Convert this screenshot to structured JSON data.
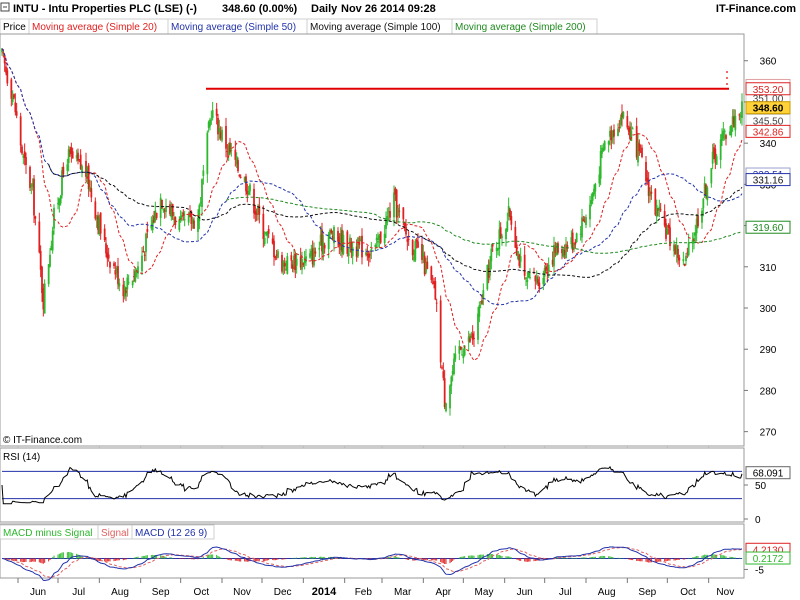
{
  "header": {
    "symbol": "INTU - Intu Properties PLC (LSE) (-)",
    "last": "348.60 (0.00%)",
    "period": "Daily",
    "date": "Nov 26 2014 09:28",
    "site": "IT-Finance.com"
  },
  "legend": {
    "price": "Price",
    "ma20": "Moving average (Simple 20)",
    "ma50": "Moving average (Simple 50)",
    "ma100": "Moving average (Simple 100)",
    "ma200": "Moving average (Simple 200)"
  },
  "watermark": "© IT-Finance.com",
  "colors": {
    "up": "#2db82d",
    "down": "#e02020",
    "ma20": "#e02020",
    "ma50": "#2233aa",
    "ma100": "#111111",
    "ma200": "#1f8a1f",
    "resistance": "#e00000",
    "rsi_line": "#000000",
    "rsi_bands": "#2233aa",
    "macd": "#2233aa",
    "signal": "#e06060",
    "histogram": "#2db82d"
  },
  "price_panel": {
    "yticks": [
      "360",
      "350",
      "340",
      "330",
      "320",
      "310",
      "300",
      "290",
      "280",
      "270"
    ],
    "ytick_values": [
      360,
      350,
      340,
      330,
      320,
      310,
      300,
      290,
      280,
      270
    ],
    "ylim": [
      267,
      366
    ],
    "labels": {
      "hidden_top": "354.00",
      "resistance": "353.20",
      "hidden_mid": "351.00",
      "hidden_low": "345.50",
      "last": "348.60",
      "ma20": "342.86",
      "ma50_hidden": "332.51",
      "ma50": "331.16",
      "ma200": "319.60"
    }
  },
  "rsi_panel": {
    "title": "RSI (14)",
    "yticks": [
      "50",
      "0"
    ],
    "ytick_values": [
      50,
      0
    ],
    "ylim": [
      0,
      100
    ],
    "bands": [
      70,
      30
    ],
    "last_label": "68.091"
  },
  "macd_panel": {
    "legend": {
      "hist": "MACD minus Signal",
      "signal": "Signal",
      "macd": "MACD (12 26 9)"
    },
    "yticks": [
      "-5"
    ],
    "ytick_values": [
      -5
    ],
    "ylim": [
      -8,
      8
    ],
    "signal_label": "4.2130",
    "hist_label": "0.2172"
  },
  "x_axis": {
    "labels": [
      "Jun",
      "Jul",
      "Aug",
      "Sep",
      "Oct",
      "Nov",
      "Dec",
      "2014",
      "Feb",
      "Mar",
      "Apr",
      "May",
      "Jun",
      "Jul",
      "Aug",
      "Sep",
      "Oct",
      "Nov"
    ]
  },
  "chart_data": {
    "type": "candlestick",
    "title": "INTU - Intu Properties PLC (LSE) (-)",
    "x_range": [
      "2013-05-20",
      "2014-11-26"
    ],
    "x_ticks": [
      "Jun",
      "Jul",
      "Aug",
      "Sep",
      "Oct",
      "Nov",
      "Dec",
      "2014",
      "Feb",
      "Mar",
      "Apr",
      "May",
      "Jun",
      "Jul",
      "Aug",
      "Sep",
      "Oct",
      "Nov"
    ],
    "ylim": [
      267,
      366
    ],
    "price_path": {
      "x": [
        "2013-05-20",
        "2013-05-28",
        "2013-06-05",
        "2013-06-12",
        "2013-06-20",
        "2013-06-28",
        "2013-07-08",
        "2013-07-22",
        "2013-08-05",
        "2013-08-19",
        "2013-08-30",
        "2013-09-06",
        "2013-09-16",
        "2013-10-01",
        "2013-10-14",
        "2013-10-24",
        "2013-11-01",
        "2013-11-08",
        "2013-11-20",
        "2013-12-02",
        "2013-12-16",
        "2014-01-06",
        "2014-01-20",
        "2014-02-05",
        "2014-02-24",
        "2014-03-10",
        "2014-03-20",
        "2014-03-31",
        "2014-04-10",
        "2014-04-17",
        "2014-04-28",
        "2014-05-09",
        "2014-05-23",
        "2014-06-05",
        "2014-06-16",
        "2014-06-27",
        "2014-07-09",
        "2014-07-22",
        "2014-08-04",
        "2014-08-15",
        "2014-08-28",
        "2014-09-08",
        "2014-09-22",
        "2014-10-03",
        "2014-10-14",
        "2014-10-24",
        "2014-11-04",
        "2014-11-14",
        "2014-11-26"
      ],
      "close": [
        361,
        352,
        336,
        328,
        302,
        322,
        337,
        333,
        315,
        305,
        310,
        317,
        327,
        320,
        322,
        348,
        342,
        337,
        330,
        319,
        311,
        312,
        318,
        315,
        314,
        326,
        317,
        312,
        303,
        278,
        290,
        293,
        314,
        323,
        306,
        307,
        314,
        316,
        325,
        340,
        347,
        339,
        324,
        317,
        310,
        322,
        336,
        343,
        348.6
      ]
    },
    "series": [
      {
        "name": "Moving average (Simple 20)",
        "values": []
      },
      {
        "name": "Moving average (Simple 50)",
        "values": []
      },
      {
        "name": "Moving average (Simple 100)",
        "values": []
      },
      {
        "name": "Moving average (Simple 200)",
        "values": []
      }
    ],
    "resistance_level": 353.2,
    "last_price": 348.6,
    "ma20_last": 342.86,
    "ma50_last": 331.16,
    "ma200_last": 319.6,
    "rsi_last": 68.091,
    "rsi_bands": [
      70,
      30
    ],
    "macd_signal_last": 4.213,
    "macd_hist_last": 0.2172
  }
}
